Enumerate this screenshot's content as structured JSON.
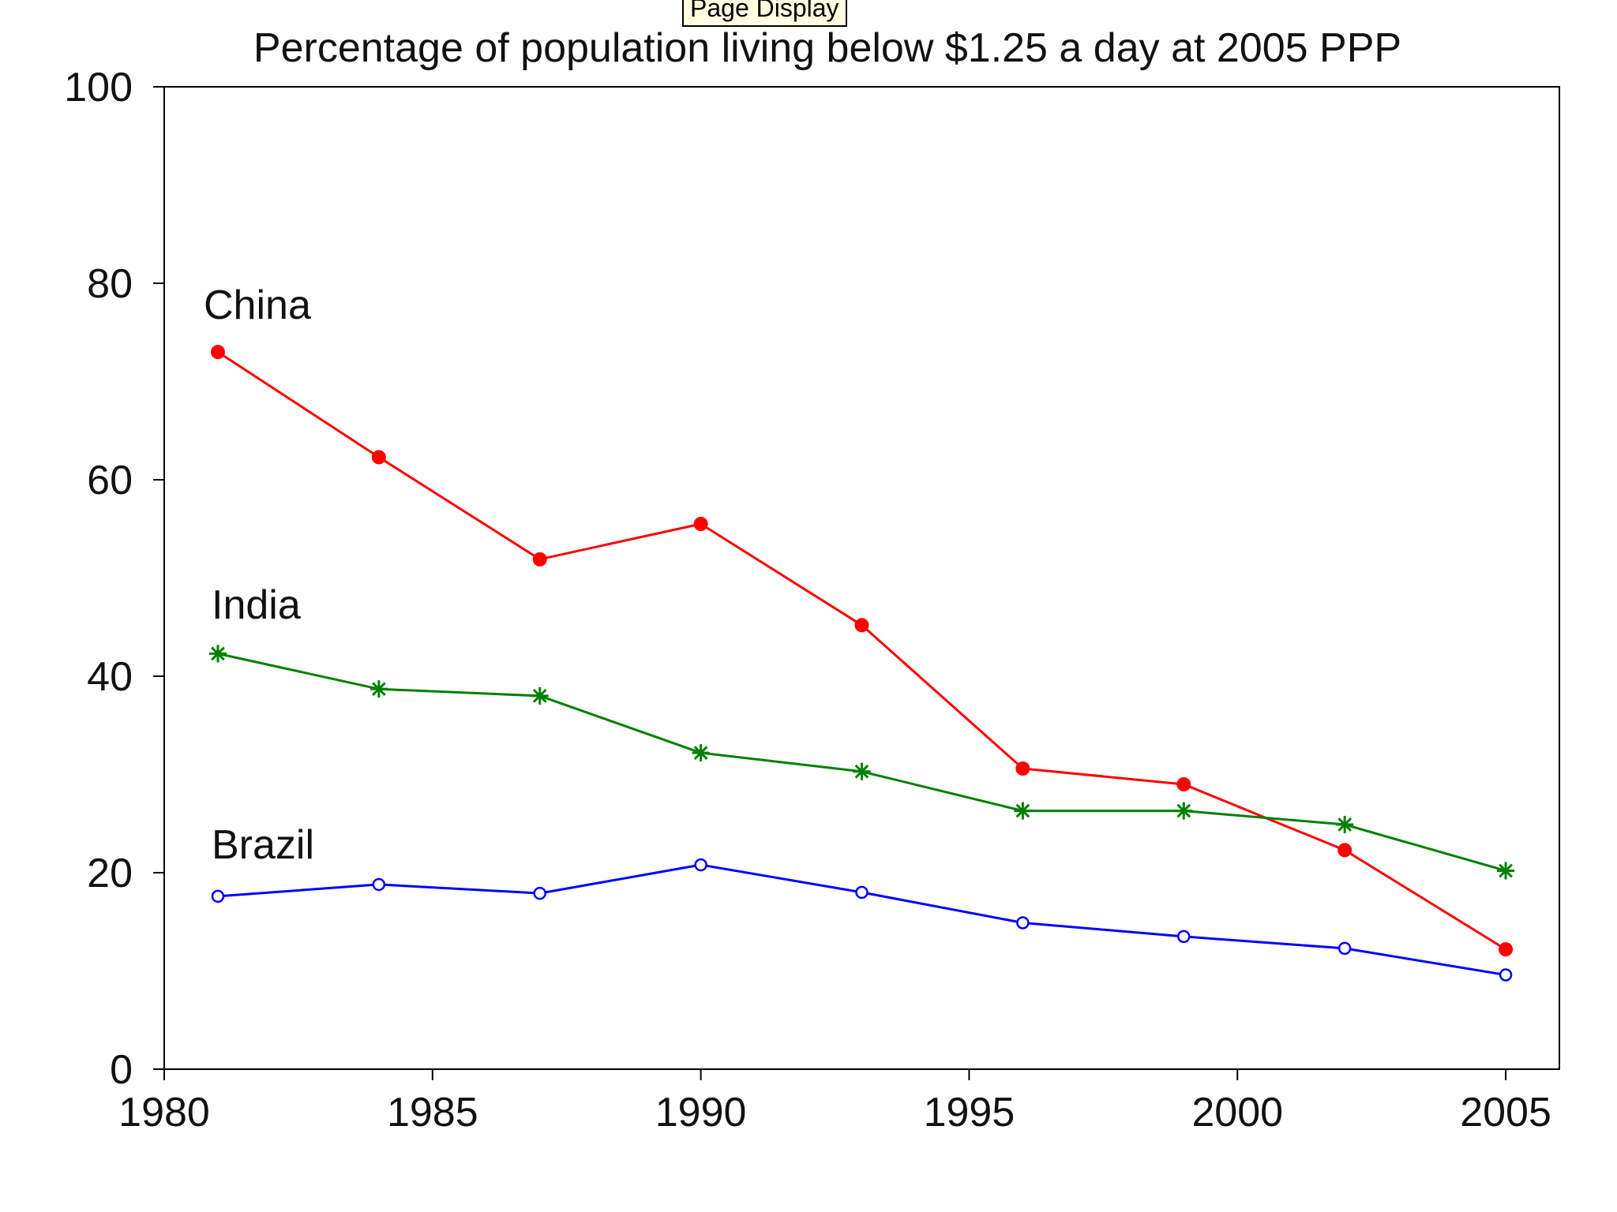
{
  "tooltip": "Page Display",
  "chart_data": {
    "type": "line",
    "title": "Percentage of population living below $1.25 a day at 2005 PPP",
    "xlabel": "",
    "ylabel": "",
    "xlim": [
      1980,
      2006
    ],
    "ylim": [
      0,
      100
    ],
    "xticks": [
      1980,
      1985,
      1990,
      1995,
      2000,
      2005
    ],
    "yticks": [
      0,
      20,
      40,
      60,
      80,
      100
    ],
    "grid": false,
    "legend": "none (series labeled directly on chart)",
    "x": [
      1981,
      1984,
      1987,
      1990,
      1993,
      1996,
      1999,
      2002,
      2005
    ],
    "series": [
      {
        "name": "China",
        "color": "#ff0000",
        "marker": "filled-circle",
        "values": [
          73.0,
          62.3,
          51.9,
          55.5,
          45.2,
          30.6,
          29.0,
          22.3,
          12.2
        ]
      },
      {
        "name": "India",
        "color": "#008000",
        "marker": "asterisk",
        "values": [
          42.3,
          38.7,
          38.0,
          32.2,
          30.3,
          26.3,
          26.3,
          24.9,
          20.2
        ]
      },
      {
        "name": "Brazil",
        "color": "#0000ff",
        "marker": "open-circle",
        "values": [
          17.6,
          18.8,
          17.9,
          20.8,
          18.0,
          14.9,
          13.5,
          12.3,
          9.6
        ]
      }
    ]
  }
}
